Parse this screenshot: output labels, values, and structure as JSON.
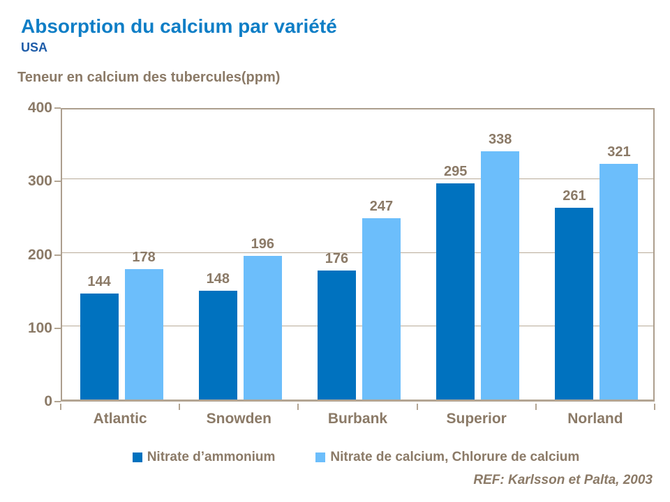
{
  "title": "Absorption du calcium par variété",
  "subtitle": "USA",
  "axis_title": "Teneur en calcium des tubercules(ppm)",
  "reference": "REF: Karlsson et Palta, 2003",
  "colors": {
    "title_blue": "#0f7ec6",
    "subtitle_blue": "#1e5ca8",
    "text_brown": "#8b7a67",
    "axis_frame": "#ac9e8d",
    "series_dark_blue": "#0072bf",
    "series_light_blue": "#6cbefb"
  },
  "chart_data": {
    "type": "bar",
    "title": "Absorption du calcium par variété",
    "subtitle": "USA",
    "ylabel": "Teneur en calcium des tubercules(ppm)",
    "xlabel": "",
    "categories": [
      "Atlantic",
      "Snowden",
      "Burbank",
      "Superior",
      "Norland"
    ],
    "series": [
      {
        "name": "Nitrate d’ammonium",
        "color": "#0072bf",
        "values": [
          144,
          148,
          176,
          295,
          261
        ]
      },
      {
        "name": "Nitrate de calcium, Chlorure de calcium",
        "color": "#6cbefb",
        "values": [
          178,
          196,
          247,
          338,
          321
        ]
      }
    ],
    "ylim": [
      0,
      400
    ],
    "yticks": [
      0,
      100,
      200,
      300,
      400
    ],
    "grid": true,
    "legend_position": "bottom",
    "annotation": "REF: Karlsson et Palta, 2003"
  }
}
